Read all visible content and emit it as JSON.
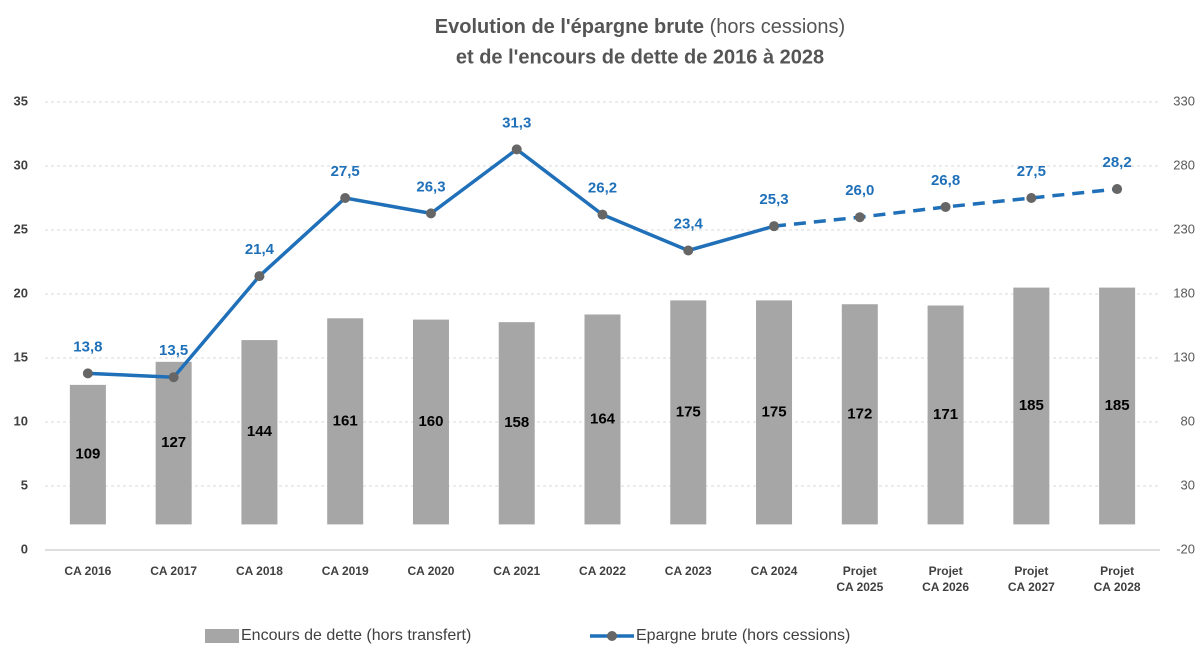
{
  "chart_data": {
    "type": "bar_line",
    "title": "Evolution de l'épargne brute",
    "title_suffix": "(hors cessions)",
    "title_line2": "et de l'encours de dette de 2016 à 2028",
    "categories": [
      "CA 2016",
      "CA 2017",
      "CA 2018",
      "CA 2019",
      "CA 2020",
      "CA 2021",
      "CA 2022",
      "CA 2023",
      "CA 2024",
      "Projet\nCA 2025",
      "Projet\nCA 2026",
      "Projet\nCA 2027",
      "Projet\nCA 2028"
    ],
    "series": [
      {
        "name": "Encours de dette (hors transfert)",
        "type": "bar",
        "axis": "y2",
        "color": "#a6a6a6",
        "values": [
          109,
          127,
          144,
          161,
          160,
          158,
          164,
          175,
          175,
          172,
          171,
          185,
          185
        ]
      },
      {
        "name": "Epargne brute (hors cessions)",
        "type": "line",
        "axis": "y",
        "color": "#1f70b8",
        "marker_color": "#666666",
        "values": [
          13.8,
          13.5,
          21.4,
          27.5,
          26.3,
          31.3,
          26.2,
          23.4,
          25.3,
          26.0,
          26.8,
          27.5,
          28.2
        ],
        "value_labels": [
          "13,8",
          "13,5",
          "21,4",
          "27,5",
          "26,3",
          "31,3",
          "26,2",
          "23,4",
          "25,3",
          "26,0",
          "26,8",
          "27,5",
          "28,2"
        ],
        "dashed_from": 8
      }
    ],
    "ylim": [
      0,
      35
    ],
    "yticks": [
      0,
      5,
      10,
      15,
      20,
      25,
      30,
      35
    ],
    "y2lim": [
      -20,
      330
    ],
    "y2ticks": [
      -20,
      30,
      80,
      130,
      180,
      230,
      280,
      330
    ],
    "grid": true,
    "legend": "bottom"
  }
}
